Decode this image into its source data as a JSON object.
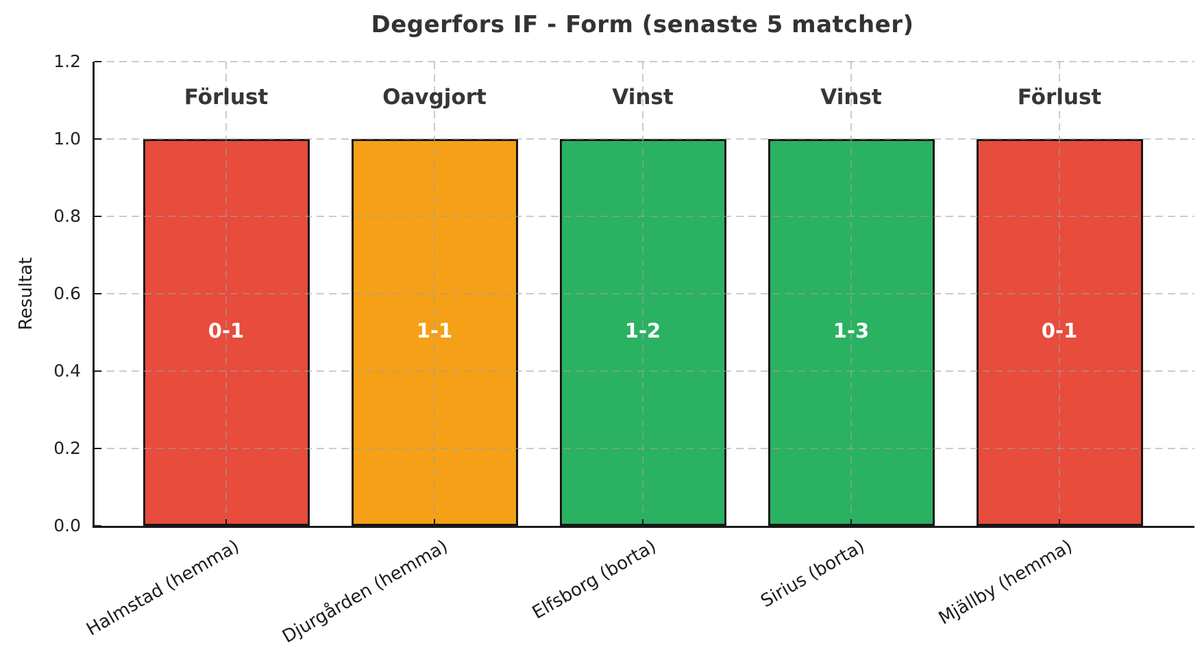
{
  "chart_data": {
    "type": "bar",
    "title": "Degerfors IF - Form (senaste 5 matcher)",
    "ylabel": "Resultat",
    "xlabel": "",
    "ylim": [
      0,
      1.2
    ],
    "yticks": [
      "0.0",
      "0.2",
      "0.4",
      "0.6",
      "0.8",
      "1.0",
      "1.2"
    ],
    "grid": "dashed gray, horizontal and vertical, drawn over bars",
    "legend": "none",
    "categories": [
      "Halmstad (hemma)",
      "Djurgården (hemma)",
      "Elfsborg (borta)",
      "Sirius (borta)",
      "Mjällby (hemma)"
    ],
    "values": [
      1.0,
      1.0,
      1.0,
      1.0,
      1.0
    ],
    "bars": [
      {
        "category": "Halmstad (hemma)",
        "value": 1.0,
        "outcome": "Förlust",
        "score": "0-1",
        "color": "#e74c3c"
      },
      {
        "category": "Djurgården (hemma)",
        "value": 1.0,
        "outcome": "Oavgjort",
        "score": "1-1",
        "color": "#f5a016"
      },
      {
        "category": "Elfsborg (borta)",
        "value": 1.0,
        "outcome": "Vinst",
        "score": "1-2",
        "color": "#2bb162"
      },
      {
        "category": "Sirius (borta)",
        "value": 1.0,
        "outcome": "Vinst",
        "score": "1-3",
        "color": "#2bb162"
      },
      {
        "category": "Mjällby (hemma)",
        "value": 1.0,
        "outcome": "Förlust",
        "score": "0-1",
        "color": "#e74c3c"
      }
    ],
    "colors": {
      "win": "#2bb162",
      "draw": "#f5a016",
      "loss": "#e74c3c",
      "bar_edge": "#161616",
      "title_text": "#333333",
      "tick_text": "#1c1c1c",
      "score_text": "#ffffff",
      "grid": "#a0a0a0"
    }
  }
}
